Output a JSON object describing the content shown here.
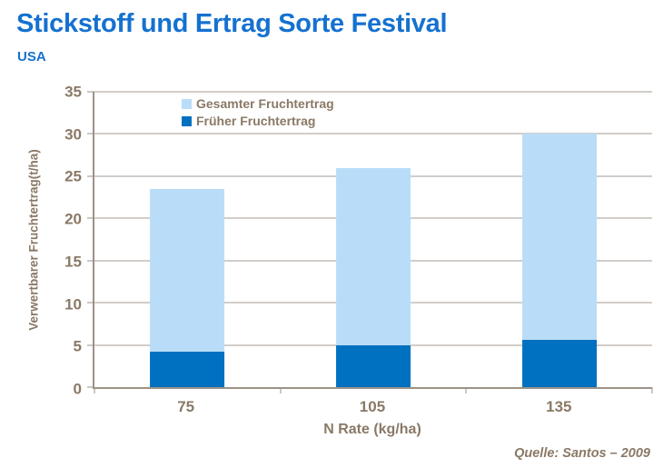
{
  "header": {
    "title": "Stickstoff und Ertrag Sorte Festival",
    "subtitle": "USA"
  },
  "chart_data": {
    "type": "bar",
    "stacked": true,
    "title": "Stickstoff und Ertrag Sorte Festival",
    "subtitle": "USA",
    "categories": [
      "75",
      "105",
      "135"
    ],
    "series": [
      {
        "name": "Gesamter Fruchtertrag",
        "color": "#B9DDF8",
        "values": [
          23.5,
          26,
          30
        ]
      },
      {
        "name": "Früher Fruchtertrag",
        "color": "#0070C0",
        "values": [
          4.2,
          5,
          5.6
        ]
      }
    ],
    "xlabel": "N Rate (kg/ha)",
    "ylabel": "Verwertbarer Fruchtertrag(t/ha)",
    "ylim": [
      0,
      35
    ],
    "ytick_step": 5,
    "grid": "horizontal",
    "legend_position": "top-inside"
  },
  "colors": {
    "title_blue": "#1571D0",
    "axis_text": "#8A7966",
    "gridline": "#A59B93",
    "axis_line": "#9C9287"
  },
  "source": "Quelle: Santos – 2009"
}
